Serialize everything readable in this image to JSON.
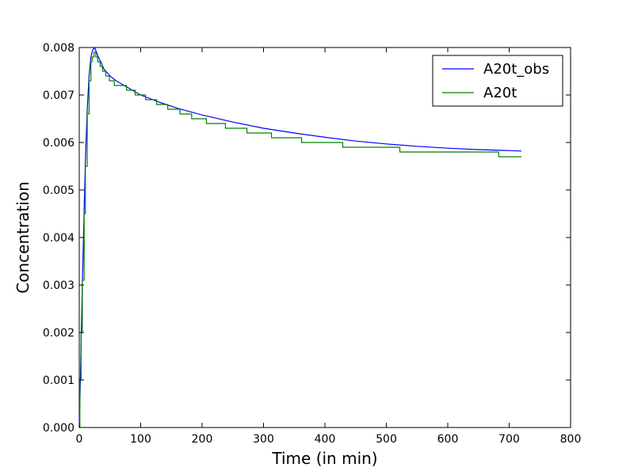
{
  "chart_data": {
    "type": "line",
    "title": "",
    "xlabel": "Time (in min)",
    "ylabel": "Concentration",
    "xlim": [
      0,
      800
    ],
    "ylim": [
      0,
      0.008
    ],
    "x_ticks": [
      0,
      100,
      200,
      300,
      400,
      500,
      600,
      700,
      800
    ],
    "y_ticks": [
      0,
      0.001,
      0.002,
      0.003,
      0.004,
      0.005,
      0.006,
      0.007,
      0.008
    ],
    "x_tick_labels": [
      "0",
      "100",
      "200",
      "300",
      "400",
      "500",
      "600",
      "700",
      "800"
    ],
    "y_tick_labels": [
      "0.000",
      "0.001",
      "0.002",
      "0.003",
      "0.004",
      "0.005",
      "0.006",
      "0.007",
      "0.008"
    ],
    "grid": false,
    "legend_position": "top-right",
    "series": [
      {
        "name": "A20t_obs",
        "color": "#0000ff",
        "style": "line",
        "x": [
          0,
          2,
          5,
          8,
          10,
          13,
          16,
          19,
          22,
          25,
          28,
          31,
          35,
          40,
          50,
          60,
          80,
          100,
          130,
          160,
          200,
          250,
          300,
          350,
          400,
          450,
          500,
          550,
          600,
          650,
          700,
          720
        ],
        "y": [
          0.0,
          0.0011,
          0.003,
          0.0046,
          0.0056,
          0.0067,
          0.0074,
          0.0078,
          0.00795,
          0.008,
          0.0079,
          0.0078,
          0.0077,
          0.00755,
          0.0074,
          0.0073,
          0.00715,
          0.007,
          0.00685,
          0.00672,
          0.00658,
          0.00643,
          0.0063,
          0.0062,
          0.00611,
          0.00603,
          0.00597,
          0.00592,
          0.00588,
          0.00585,
          0.00583,
          0.00582
        ]
      },
      {
        "name": "A20t",
        "color": "#008000",
        "style": "step",
        "x": [
          0,
          1,
          3,
          5,
          8,
          10,
          13,
          16,
          19,
          21,
          24,
          27,
          30,
          34,
          38,
          43,
          49,
          57,
          66,
          77,
          91,
          108,
          126,
          144,
          164,
          183,
          207,
          238,
          273,
          313,
          362,
          429,
          522,
          683,
          720
        ],
        "y": [
          0.0,
          0.001,
          0.002,
          0.0031,
          0.0045,
          0.0055,
          0.0066,
          0.0073,
          0.0077,
          0.0078,
          0.0079,
          0.0078,
          0.0077,
          0.0076,
          0.0075,
          0.0074,
          0.0073,
          0.0072,
          0.0072,
          0.0071,
          0.007,
          0.0069,
          0.0068,
          0.0067,
          0.0066,
          0.0065,
          0.0064,
          0.0063,
          0.0062,
          0.0061,
          0.006,
          0.0059,
          0.0058,
          0.0057,
          0.0057
        ]
      }
    ]
  }
}
